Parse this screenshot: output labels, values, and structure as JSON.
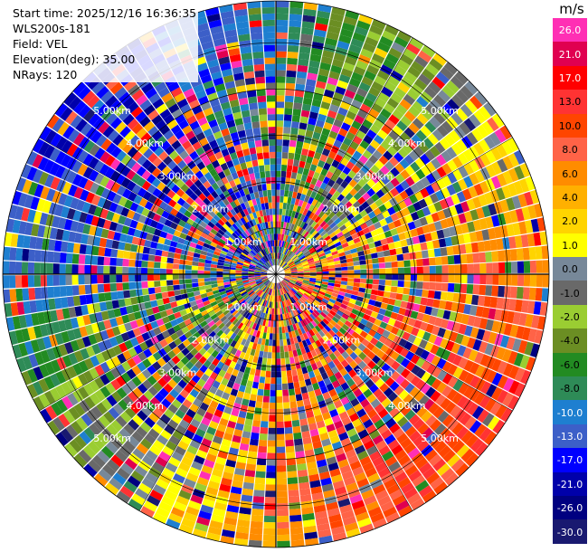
{
  "header": {
    "lines": [
      "Start time: 2025/12/16 16:36:35",
      "WLS200s-181",
      "Field: VEL",
      "Elevation(deg): 35.00",
      "NRays: 120"
    ]
  },
  "chart_data": {
    "type": "heatmap",
    "projection": "polar-ppi",
    "field": "VEL",
    "nrays": 120,
    "elevation_deg": 35.0,
    "range_rings_km": [
      1.0,
      2.0,
      3.0,
      4.0,
      5.0
    ],
    "ring_labels": [
      "1.00km",
      "2.00km",
      "3.00km",
      "4.00km",
      "5.00km"
    ],
    "range_max_km": 5.9,
    "colorbar": {
      "unit": "m/s",
      "tick_labels": [
        "26.0",
        "21.0",
        "17.0",
        "13.0",
        "10.0",
        "8.0",
        "6.0",
        "4.0",
        "2.0",
        "1.0",
        "0.0",
        "-1.0",
        "-2.0",
        "-4.0",
        "-6.0",
        "-8.0",
        "-10.0",
        "-13.0",
        "-17.0",
        "-21.0",
        "-26.0",
        "-30.0"
      ],
      "colors": [
        "#ff2fb4",
        "#e00050",
        "#ff0000",
        "#ff3333",
        "#ff4500",
        "#ff6347",
        "#ff8c00",
        "#ffb000",
        "#ffd400",
        "#ffff00",
        "#778899",
        "#696969",
        "#9acd32",
        "#6b8e23",
        "#228b22",
        "#2e8b57",
        "#1e7fd0",
        "#3c5fc8",
        "#0000ff",
        "#0000aa",
        "#000080",
        "#191970"
      ]
    }
  }
}
